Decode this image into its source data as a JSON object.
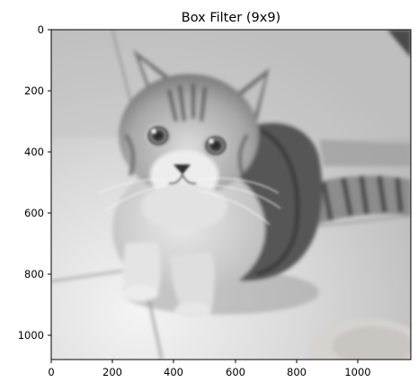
{
  "figure": {
    "title": "Box Filter (9x9)"
  },
  "image": {
    "subject": "grayscale photo of a tabby cat sitting on a tiled floor, blurred by a box filter",
    "colormap": "gray"
  },
  "axes": {
    "x_ticks": [
      "0",
      "200",
      "400",
      "600",
      "800",
      "1000"
    ],
    "y_ticks": [
      "0",
      "200",
      "400",
      "600",
      "800",
      "1000"
    ],
    "x_range": [
      0,
      1170
    ],
    "y_range": [
      0,
      1080
    ]
  }
}
